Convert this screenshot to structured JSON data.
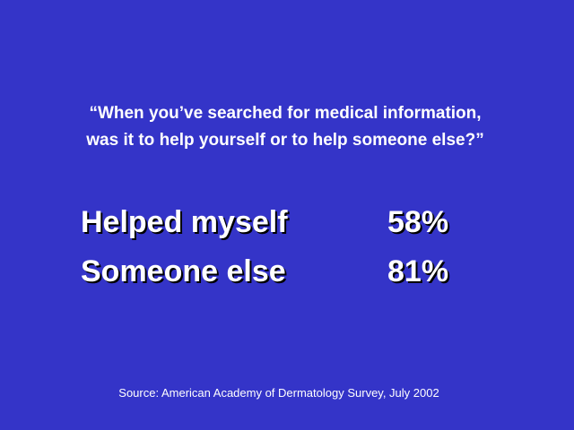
{
  "slide": {
    "question": [
      "“When you’ve searched for medical information,",
      "was it to help yourself or to help someone else?”"
    ],
    "table": {
      "rows": [
        [
          "Helped myself",
          "58%"
        ],
        [
          "Someone else",
          "81%"
        ]
      ]
    },
    "source": "Source: American Academy of Dermatology Survey, July 2002"
  }
}
